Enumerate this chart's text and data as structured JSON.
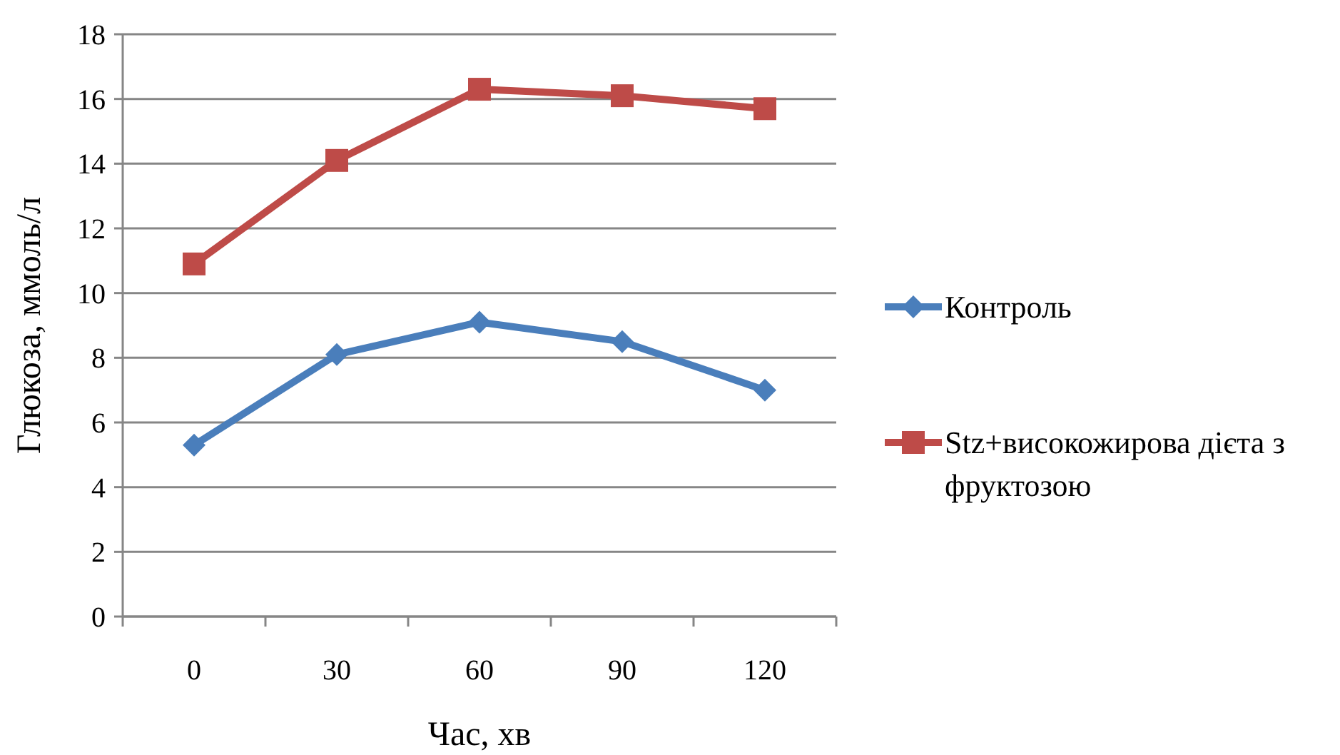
{
  "chart_data": {
    "type": "line",
    "xlabel": "Час, хв",
    "ylabel": "Глюкоза, ммоль/л",
    "categories": [
      "0",
      "30",
      "60",
      "90",
      "120"
    ],
    "ylim": [
      0,
      18
    ],
    "yticks": [
      0,
      2,
      4,
      6,
      8,
      10,
      12,
      14,
      16,
      18
    ],
    "grid": "y",
    "legend": "right",
    "line_style": "solid",
    "series": [
      {
        "name": "Контроль",
        "color": "#4a7ebb",
        "marker": "diamond",
        "values": [
          5.3,
          8.1,
          9.1,
          8.5,
          7.0
        ]
      },
      {
        "name": "Stz+високожирова дієта з фруктозою",
        "color": "#be4b48",
        "marker": "square",
        "values": [
          10.9,
          14.1,
          16.3,
          16.1,
          15.7
        ]
      }
    ]
  }
}
